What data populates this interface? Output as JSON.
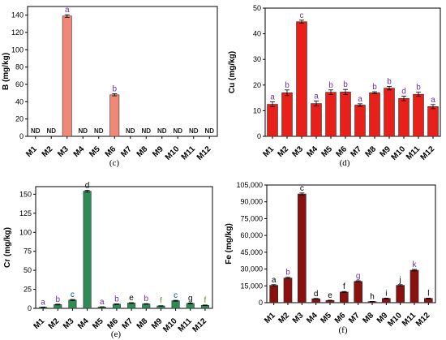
{
  "chart_data": [
    {
      "type": "bar",
      "panel_label": "(c)",
      "ylabel": "B (mg/kg)",
      "categories": [
        "M1",
        "M2",
        "M3",
        "M4",
        "M5",
        "M6",
        "M7",
        "M8",
        "M9",
        "M10",
        "M11",
        "M12"
      ],
      "values": [
        null,
        null,
        139,
        null,
        null,
        48,
        null,
        null,
        null,
        null,
        null,
        null
      ],
      "errors": [
        null,
        null,
        1.5,
        null,
        null,
        1.2,
        null,
        null,
        null,
        null,
        null,
        null
      ],
      "bar_labels": [
        "ND",
        "ND",
        "a",
        "ND",
        "ND",
        "b",
        "ND",
        "ND",
        "ND",
        "ND",
        "ND",
        "ND"
      ],
      "ylim": [
        0,
        150
      ],
      "yticks": [
        0,
        20,
        40,
        60,
        80,
        100,
        120,
        140
      ],
      "ytick_labels": [
        "0",
        "20",
        "40",
        "60",
        "80",
        "100",
        "120",
        "140"
      ],
      "bar_color": "#f08878",
      "label_color": "#7030a0"
    },
    {
      "type": "bar",
      "panel_label": "(d)",
      "ylabel": "Cu (mg/kg)",
      "categories": [
        "M1",
        "M2",
        "M3",
        "M4",
        "M5",
        "M6",
        "M7",
        "M8",
        "M9",
        "M10",
        "M11",
        "M12"
      ],
      "values": [
        12.5,
        17,
        44.7,
        12.8,
        17.2,
        17.3,
        12.2,
        17,
        18.8,
        14.8,
        16.4,
        11.6
      ],
      "errors": [
        1.0,
        1.1,
        0.6,
        1.0,
        0.9,
        1.0,
        0.5,
        0.4,
        0.7,
        0.9,
        0.8,
        0.8
      ],
      "bar_labels": [
        "a",
        "b",
        "c",
        "a",
        "b",
        "b",
        "a",
        "b",
        "b",
        "d",
        "b",
        "a"
      ],
      "ylim": [
        0,
        50
      ],
      "yticks": [
        0,
        10,
        20,
        30,
        40,
        50
      ],
      "ytick_labels": [
        "0",
        "10",
        "20",
        "30",
        "40",
        "50"
      ],
      "bar_color": "#e8201a",
      "label_color": "#7030a0"
    },
    {
      "type": "bar",
      "panel_label": "(e)",
      "ylabel": "Cr (mg/kg)",
      "categories": [
        "M1",
        "M2",
        "M3",
        "M4",
        "M5",
        "M6",
        "M7",
        "M8",
        "M9",
        "M10",
        "M11",
        "M12"
      ],
      "values": [
        1.5,
        5,
        11,
        154,
        1.8,
        5.5,
        7,
        5.8,
        3.2,
        10,
        6.5,
        4
      ],
      "errors": [
        0.3,
        0.5,
        0.7,
        1.2,
        0.3,
        0.4,
        0.5,
        0.4,
        0.3,
        0.6,
        0.5,
        0.4
      ],
      "bar_labels": [
        "a",
        "b",
        "c",
        "d",
        "a",
        "b",
        "e",
        "b",
        "f",
        "c",
        "g",
        "f"
      ],
      "bar_label_colors": [
        "#7030a0",
        "#7030a0",
        "#0050c0",
        "#000000",
        "#7030a0",
        "#7030a0",
        "#000000",
        "#7030a0",
        "#6b8e23",
        "#0050c0",
        "#000000",
        "#6b8e23"
      ],
      "ylim": [
        0,
        160
      ],
      "yticks": [
        0,
        25,
        50,
        75,
        100,
        125,
        150
      ],
      "ytick_labels": [
        "0",
        "25",
        "50",
        "75",
        "100",
        "125",
        "150"
      ],
      "bar_color": "#2e8b57"
    },
    {
      "type": "bar",
      "panel_label": "(f)",
      "ylabel": "Fe (mg/kg)",
      "categories": [
        "M1",
        "M2",
        "M3",
        "M4",
        "M5",
        "M6",
        "M7",
        "M8",
        "M9",
        "M10",
        "M11",
        "M12"
      ],
      "values": [
        15500,
        22000,
        97000,
        3500,
        2000,
        9500,
        19000,
        1000,
        3800,
        15500,
        29000,
        3800
      ],
      "errors": [
        600,
        700,
        900,
        300,
        200,
        500,
        600,
        150,
        300,
        600,
        700,
        300
      ],
      "bar_labels": [
        "a",
        "b",
        "c",
        "d",
        "e",
        "f",
        "g",
        "h",
        "i",
        "j",
        "k",
        "l"
      ],
      "bar_label_colors": [
        "#000000",
        "#7030a0",
        "#000000",
        "#000000",
        "#000000",
        "#000000",
        "#7030a0",
        "#000000",
        "#000000",
        "#000000",
        "#7030a0",
        "#000000"
      ],
      "ylim": [
        0,
        105000
      ],
      "yticks": [
        0,
        15000,
        30000,
        45000,
        60000,
        75000,
        90000,
        105000
      ],
      "ytick_labels": [
        "0",
        "15,000",
        "30,000",
        "45,000",
        "60,000",
        "75,000",
        "90,000",
        "105,000"
      ],
      "bar_color": "#8b1010"
    }
  ]
}
